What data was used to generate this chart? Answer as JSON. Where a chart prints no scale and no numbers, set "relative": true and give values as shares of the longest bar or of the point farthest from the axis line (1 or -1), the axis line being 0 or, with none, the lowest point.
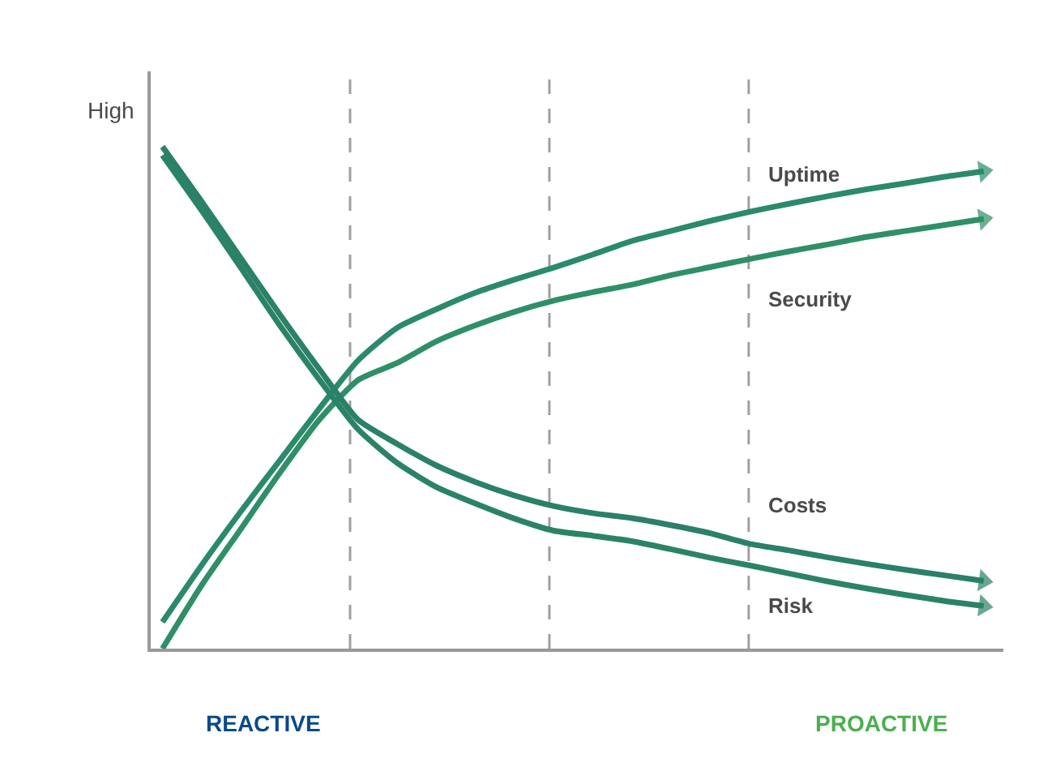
{
  "chart_data": {
    "type": "line",
    "relative": true,
    "ylabel": "High",
    "categories": [
      null,
      null,
      null,
      null,
      null,
      null,
      null,
      null,
      null,
      null,
      null,
      null,
      null,
      null,
      null,
      null,
      null,
      null,
      null,
      null,
      null,
      null
    ],
    "series": [
      {
        "name": "Uptime",
        "color": "#2a8a6a",
        "values": [
          0.053,
          0.166,
          0.273,
          0.375,
          0.477,
          0.574,
          0.639,
          0.676,
          0.709,
          0.735,
          0.759,
          0.785,
          0.812,
          0.832,
          0.852,
          0.87,
          0.886,
          0.901,
          0.915,
          0.927,
          0.94,
          0.951
        ]
      },
      {
        "name": "Security",
        "color": "#2f8f66",
        "values": [
          0.0,
          0.126,
          0.238,
          0.35,
          0.455,
          0.535,
          0.569,
          0.612,
          0.644,
          0.671,
          0.693,
          0.71,
          0.725,
          0.744,
          0.76,
          0.776,
          0.791,
          0.805,
          0.82,
          0.832,
          0.844,
          0.856
        ]
      },
      {
        "name": "Costs",
        "color": "#2a8068",
        "values": [
          1.0,
          0.891,
          0.778,
          0.666,
          0.558,
          0.456,
          0.408,
          0.365,
          0.332,
          0.305,
          0.284,
          0.27,
          0.26,
          0.246,
          0.23,
          0.209,
          0.196,
          0.182,
          0.169,
          0.157,
          0.146,
          0.135
        ]
      },
      {
        "name": "Risk",
        "color": "#2b8366",
        "values": [
          0.983,
          0.873,
          0.759,
          0.644,
          0.537,
          0.437,
          0.37,
          0.322,
          0.289,
          0.259,
          0.235,
          0.225,
          0.214,
          0.198,
          0.181,
          0.166,
          0.15,
          0.134,
          0.12,
          0.107,
          0.095,
          0.085
        ]
      }
    ],
    "annotations": [
      "REACTIVE",
      "PROACTIVE"
    ],
    "legend": false,
    "grid": false,
    "marker": "none",
    "line_style": "solid"
  }
}
